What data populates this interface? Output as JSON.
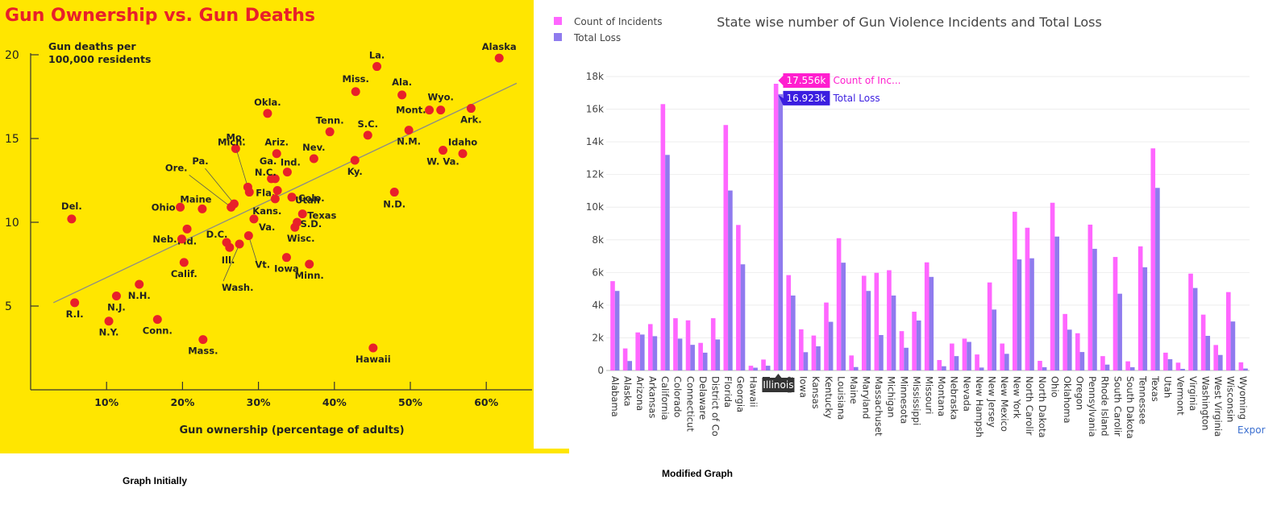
{
  "captions": {
    "left": "Graph Initially",
    "right": "Modified Graph"
  },
  "colors": {
    "left_bg": "#ffe600",
    "title_red": "#e8202a",
    "dot_red": "#e8202a",
    "count": "#ff66ff",
    "loss": "#8f7bee",
    "tip_count": "#ff1fcf",
    "tip_loss": "#3b1ee0"
  },
  "chart_data": [
    {
      "type": "scatter",
      "title": "Gun Ownership vs. Gun Deaths",
      "ylabel_lines": [
        "Gun deaths per",
        "100,000 residents"
      ],
      "xlabel": "Gun ownership (percentage of adults)",
      "xlim": [
        0,
        65
      ],
      "ylim": [
        0,
        20
      ],
      "xticks": [
        10,
        20,
        30,
        40,
        50,
        60
      ],
      "xtick_labels": [
        "10%",
        "20%",
        "30%",
        "40%",
        "50%",
        "60%"
      ],
      "yticks": [
        5,
        10,
        15,
        20
      ],
      "ytick_labels": [
        "5",
        "10",
        "15",
        "20"
      ],
      "trendline": {
        "x": [
          3,
          64
        ],
        "y": [
          5.2,
          18.3
        ]
      },
      "points": [
        {
          "label": "Alaska",
          "x": 61.7,
          "y": 19.8
        },
        {
          "label": "La.",
          "x": 45.6,
          "y": 19.3
        },
        {
          "label": "Miss.",
          "x": 42.8,
          "y": 17.8
        },
        {
          "label": "Ala.",
          "x": 48.9,
          "y": 17.6
        },
        {
          "label": "Wyo.",
          "x": 54.0,
          "y": 16.7
        },
        {
          "label": "Mont.",
          "x": 52.5,
          "y": 16.7
        },
        {
          "label": "Ark.",
          "x": 58.0,
          "y": 16.8
        },
        {
          "label": "Okla.",
          "x": 31.2,
          "y": 16.5
        },
        {
          "label": "Tenn.",
          "x": 39.4,
          "y": 15.4
        },
        {
          "label": "S.C.",
          "x": 44.4,
          "y": 15.2
        },
        {
          "label": "N.M.",
          "x": 49.8,
          "y": 15.5
        },
        {
          "label": "Idaho",
          "x": 56.9,
          "y": 14.1
        },
        {
          "label": "W. Va.",
          "x": 54.3,
          "y": 14.3
        },
        {
          "label": "Mo.",
          "x": 27.0,
          "y": 14.4
        },
        {
          "label": "Ariz.",
          "x": 32.4,
          "y": 14.1
        },
        {
          "label": "Nev.",
          "x": 37.3,
          "y": 13.8
        },
        {
          "label": "Ky.",
          "x": 42.7,
          "y": 13.7
        },
        {
          "label": "Ind.",
          "x": 33.8,
          "y": 13.0
        },
        {
          "label": "Ga.",
          "x": 31.7,
          "y": 12.6
        },
        {
          "label": "N.C.",
          "x": 32.2,
          "y": 12.6
        },
        {
          "label": "Mich.",
          "x": 28.6,
          "y": 12.1
        },
        {
          "label": "Pa.",
          "x": 26.8,
          "y": 11.1
        },
        {
          "label": "Ore.",
          "x": 26.4,
          "y": 10.9
        },
        {
          "label": "Fla.",
          "x": 28.8,
          "y": 11.8
        },
        {
          "label": "Utah",
          "x": 32.5,
          "y": 11.9
        },
        {
          "label": "Colo.",
          "x": 34.4,
          "y": 11.5
        },
        {
          "label": "Kans.",
          "x": 32.2,
          "y": 11.4
        },
        {
          "label": "N.D.",
          "x": 47.9,
          "y": 11.8
        },
        {
          "label": "Del.",
          "x": 5.4,
          "y": 10.2
        },
        {
          "label": "Ohio",
          "x": 19.7,
          "y": 10.9
        },
        {
          "label": "Maine",
          "x": 22.6,
          "y": 10.8
        },
        {
          "label": "Md.",
          "x": 20.6,
          "y": 9.6
        },
        {
          "label": "Texas",
          "x": 35.8,
          "y": 10.5
        },
        {
          "label": "S.D.",
          "x": 35.1,
          "y": 10.0
        },
        {
          "label": "Wisc.",
          "x": 34.8,
          "y": 9.7
        },
        {
          "label": "Va.",
          "x": 29.4,
          "y": 10.2
        },
        {
          "label": "Neb.",
          "x": 19.9,
          "y": 9.0
        },
        {
          "label": "D.C.",
          "x": 25.8,
          "y": 8.8
        },
        {
          "label": "Ill.",
          "x": 26.2,
          "y": 8.5
        },
        {
          "label": "Wash.",
          "x": 27.5,
          "y": 8.7
        },
        {
          "label": "Vt.",
          "x": 28.7,
          "y": 9.2
        },
        {
          "label": "Iowa",
          "x": 33.7,
          "y": 7.9
        },
        {
          "label": "Minn.",
          "x": 36.7,
          "y": 7.5
        },
        {
          "label": "Calif.",
          "x": 20.2,
          "y": 7.6
        },
        {
          "label": "N.H.",
          "x": 14.3,
          "y": 6.3
        },
        {
          "label": "N.J.",
          "x": 11.3,
          "y": 5.6
        },
        {
          "label": "R.I.",
          "x": 5.8,
          "y": 5.2
        },
        {
          "label": "N.Y.",
          "x": 10.3,
          "y": 4.1
        },
        {
          "label": "Conn.",
          "x": 16.7,
          "y": 4.2
        },
        {
          "label": "Mass.",
          "x": 22.7,
          "y": 3.0
        },
        {
          "label": "Hawaii",
          "x": 45.1,
          "y": 2.5
        }
      ]
    },
    {
      "type": "bar",
      "title": "State wise number of Gun Violence Incidents and Total Loss",
      "ylim": [
        0,
        18500
      ],
      "yticks": [
        0,
        2000,
        4000,
        6000,
        8000,
        10000,
        12000,
        14000,
        16000,
        18000
      ],
      "ytick_labels": [
        "0",
        "2k",
        "4k",
        "6k",
        "8k",
        "10k",
        "12k",
        "14k",
        "16k",
        "18k"
      ],
      "legend_position": "top-left",
      "categories": [
        "Alabama",
        "Alaska",
        "Arizona",
        "Arkansas",
        "California",
        "Colorado",
        "Connecticut",
        "Delaware",
        "District of Co",
        "Florida",
        "Georgia",
        "Hawaii",
        "Idaho",
        "Illinois",
        "Indiana",
        "Iowa",
        "Kansas",
        "Kentucky",
        "Louisiana",
        "Maine",
        "Maryland",
        "Massachuset",
        "Michigan",
        "Minnesota",
        "Mississippi",
        "Missouri",
        "Montana",
        "Nebraska",
        "Nevada",
        "New Hampsh",
        "New Jersey",
        "New Mexico",
        "New York",
        "North Carolir",
        "North Dakota",
        "Ohio",
        "Oklahoma",
        "Oregon",
        "Pennsylvania",
        "Rhode Island",
        "South Carolir",
        "South Dakota",
        "Tennessee",
        "Texas",
        "Utah",
        "Vermont",
        "Virginia",
        "Washington",
        "West Virginia",
        "Wisconsin",
        "Wyoming"
      ],
      "tick_labels": [
        "Alabama",
        "Alaska",
        "Arizona",
        "Arkansas",
        "California",
        "Colorado",
        "Connecticut",
        "Delaware",
        "District of Co",
        "Florida",
        "Georgia",
        "Hawaii",
        "ho",
        "ois",
        "ana",
        "Iowa",
        "Kansas",
        "Kentucky",
        "Louisiana",
        "Maine",
        "Maryland",
        "Massachuset",
        "Michigan",
        "Minnesota",
        "Mississippi",
        "Missouri",
        "Montana",
        "Nebraska",
        "Nevada",
        "New Hampsh",
        "New Jersey",
        "New Mexico",
        "New York",
        "North Carolir",
        "North Dakota",
        "Ohio",
        "Oklahoma",
        "Oregon",
        "Pennsylvania",
        "Rhode Island",
        "South Carolir",
        "South Dakota",
        "Tennessee",
        "Texas",
        "Utah",
        "Vermont",
        "Virginia",
        "Washington",
        "West Virginia",
        "Wisconsin",
        "Wyoming"
      ],
      "series": [
        {
          "name": "Count of Incidents",
          "values": [
            5470,
            1350,
            2330,
            2840,
            16310,
            3200,
            3070,
            1690,
            3200,
            15030,
            8910,
            290,
            670,
            17556,
            5840,
            2520,
            2140,
            4160,
            8100,
            920,
            5800,
            5980,
            6140,
            2410,
            3600,
            6620,
            640,
            1650,
            1950,
            980,
            5390,
            1650,
            9720,
            8740,
            590,
            10270,
            3460,
            2280,
            8930,
            880,
            6950,
            560,
            7600,
            13600,
            1090,
            480,
            5930,
            3420,
            1560,
            4800,
            500
          ]
        },
        {
          "name": "Total Loss",
          "values": [
            4870,
            580,
            2200,
            2100,
            13200,
            1950,
            1570,
            1090,
            1900,
            11020,
            6500,
            170,
            290,
            16923,
            4590,
            1120,
            1480,
            2980,
            6600,
            210,
            4870,
            2170,
            4590,
            1390,
            3060,
            5730,
            260,
            880,
            1750,
            180,
            3730,
            1020,
            6800,
            6870,
            200,
            8200,
            2500,
            1130,
            7450,
            360,
            4700,
            200,
            6320,
            11180,
            690,
            100,
            5050,
            2120,
            950,
            3000,
            120
          ]
        }
      ],
      "tooltip": {
        "category": "Illinois",
        "count_value": "17.556k",
        "count_label": "Count of Inc...",
        "loss_value": "16.923k",
        "loss_label": "Total Loss"
      },
      "corner_text": "Expor"
    }
  ]
}
